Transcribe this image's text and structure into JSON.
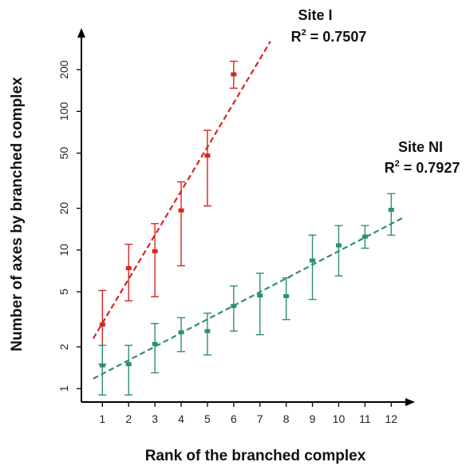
{
  "chart_data": {
    "type": "scatter",
    "xlabel": "Rank of the branched complex",
    "ylabel": "Number of axes by branched complex",
    "x_scale": "linear",
    "y_scale": "log",
    "xlim": [
      0.2,
      12.6
    ],
    "ylim": [
      0.8,
      350
    ],
    "x_ticks": [
      1,
      2,
      3,
      4,
      5,
      6,
      7,
      8,
      9,
      10,
      11,
      12
    ],
    "y_ticks": [
      1,
      2,
      5,
      10,
      20,
      50,
      100,
      200
    ],
    "grid": false,
    "legend": "none",
    "series": [
      {
        "name": "Site I",
        "color": "#d6251e",
        "points": [
          {
            "x": 1,
            "y": 2.9,
            "low": 1.5,
            "high": 5.1
          },
          {
            "x": 2,
            "y": 7.4,
            "low": 4.3,
            "high": 11.0
          },
          {
            "x": 3,
            "y": 9.8,
            "low": 4.6,
            "high": 15.5
          },
          {
            "x": 4,
            "y": 19.3,
            "low": 7.7,
            "high": 31.0
          },
          {
            "x": 5,
            "y": 48.0,
            "low": 20.8,
            "high": 73.0
          },
          {
            "x": 6,
            "y": 185.0,
            "low": 147.0,
            "high": 230.0
          }
        ],
        "fit": {
          "x0": 0.65,
          "y0": 2.3,
          "x1": 7.4,
          "y1": 320
        }
      },
      {
        "name": "Site NI",
        "color": "#2d8e76",
        "points": [
          {
            "x": 1,
            "y": 1.47,
            "low": 0.9,
            "high": 2.05
          },
          {
            "x": 2,
            "y": 1.5,
            "low": 0.9,
            "high": 2.05
          },
          {
            "x": 3,
            "y": 2.1,
            "low": 1.3,
            "high": 2.95
          },
          {
            "x": 4,
            "y": 2.55,
            "low": 1.85,
            "high": 3.25
          },
          {
            "x": 5,
            "y": 2.6,
            "low": 1.75,
            "high": 3.5
          },
          {
            "x": 6,
            "y": 3.95,
            "low": 2.6,
            "high": 5.5
          },
          {
            "x": 7,
            "y": 4.7,
            "low": 2.45,
            "high": 6.8
          },
          {
            "x": 8,
            "y": 4.65,
            "low": 3.15,
            "high": 6.3
          },
          {
            "x": 9,
            "y": 8.4,
            "low": 4.4,
            "high": 12.8
          },
          {
            "x": 10,
            "y": 10.8,
            "low": 6.5,
            "high": 15.0
          },
          {
            "x": 11,
            "y": 12.5,
            "low": 10.3,
            "high": 15.0
          },
          {
            "x": 12,
            "y": 19.5,
            "low": 12.8,
            "high": 25.5
          }
        ],
        "fit": {
          "x0": 0.65,
          "y0": 1.18,
          "x1": 12.5,
          "y1": 17.3
        }
      }
    ],
    "annotations": [
      {
        "series": "Site I",
        "title": "Site I",
        "r2_prefix": "R",
        "r2_sup": "2",
        "r2_text": " = 0.7507"
      },
      {
        "series": "Site NI",
        "title": "Site NI",
        "r2_prefix": "R",
        "r2_sup": "2",
        "r2_text": " = 0.7927"
      }
    ]
  }
}
